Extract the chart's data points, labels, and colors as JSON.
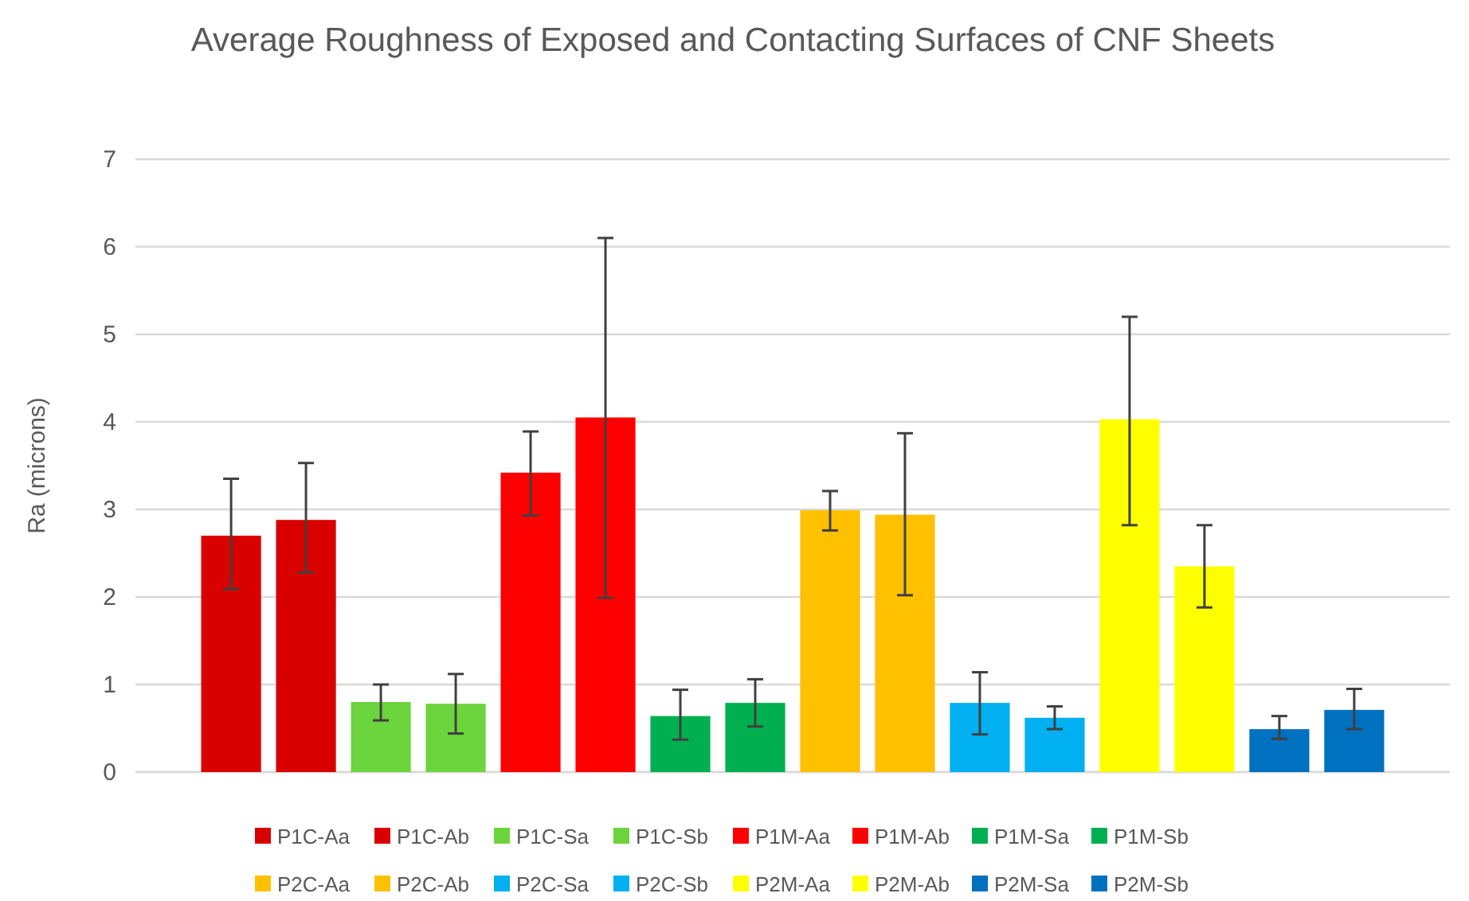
{
  "chart_data": {
    "type": "bar",
    "title": "Average Roughness of Exposed and Contacting Surfaces of CNF Sheets",
    "ylabel": "Ra (microns)",
    "categories": [
      null
    ],
    "ylim": [
      0,
      7
    ],
    "yticks": [
      0,
      1,
      2,
      3,
      4,
      5,
      6,
      7
    ],
    "grid": "y",
    "legend": "bottom",
    "series": [
      {
        "name": "P1C-Aa",
        "color": "#d90000",
        "values": [
          2.7
        ],
        "errors": [
          [
            2.09,
            3.35
          ]
        ]
      },
      {
        "name": "P1C-Ab",
        "color": "#d90000",
        "values": [
          2.88
        ],
        "errors": [
          [
            2.28,
            3.53
          ]
        ]
      },
      {
        "name": "P1C-Sa",
        "color": "#6cd43c",
        "values": [
          0.8
        ],
        "errors": [
          [
            0.59,
            1.0
          ]
        ]
      },
      {
        "name": "P1C-Sb",
        "color": "#6cd43c",
        "values": [
          0.78
        ],
        "errors": [
          [
            0.44,
            1.12
          ]
        ]
      },
      {
        "name": "P1M-Aa",
        "color": "#ff0000",
        "values": [
          3.42
        ],
        "errors": [
          [
            2.93,
            3.89
          ]
        ]
      },
      {
        "name": "P1M-Ab",
        "color": "#ff0000",
        "values": [
          4.05
        ],
        "errors": [
          [
            1.99,
            6.1
          ]
        ]
      },
      {
        "name": "P1M-Sa",
        "color": "#00b050",
        "values": [
          0.64
        ],
        "errors": [
          [
            0.37,
            0.94
          ]
        ]
      },
      {
        "name": "P1M-Sb",
        "color": "#00b050",
        "values": [
          0.79
        ],
        "errors": [
          [
            0.52,
            1.06
          ]
        ]
      },
      {
        "name": "P2C-Aa",
        "color": "#ffc000",
        "values": [
          2.99
        ],
        "errors": [
          [
            2.76,
            3.21
          ]
        ]
      },
      {
        "name": "P2C-Ab",
        "color": "#ffc000",
        "values": [
          2.94
        ],
        "errors": [
          [
            2.02,
            3.87
          ]
        ]
      },
      {
        "name": "P2C-Sa",
        "color": "#00b0f0",
        "values": [
          0.79
        ],
        "errors": [
          [
            0.43,
            1.14
          ]
        ]
      },
      {
        "name": "P2C-Sb",
        "color": "#00b0f0",
        "values": [
          0.62
        ],
        "errors": [
          [
            0.49,
            0.75
          ]
        ]
      },
      {
        "name": "P2M-Aa",
        "color": "#ffff00",
        "values": [
          4.03
        ],
        "errors": [
          [
            2.82,
            5.2
          ]
        ]
      },
      {
        "name": "P2M-Ab",
        "color": "#ffff00",
        "values": [
          2.35
        ],
        "errors": [
          [
            1.88,
            2.82
          ]
        ]
      },
      {
        "name": "P2M-Sa",
        "color": "#0070c0",
        "values": [
          0.49
        ],
        "errors": [
          [
            0.38,
            0.64
          ]
        ]
      },
      {
        "name": "P2M-Sb",
        "color": "#0070c0",
        "values": [
          0.71
        ],
        "errors": [
          [
            0.49,
            0.95
          ]
        ]
      }
    ]
  }
}
